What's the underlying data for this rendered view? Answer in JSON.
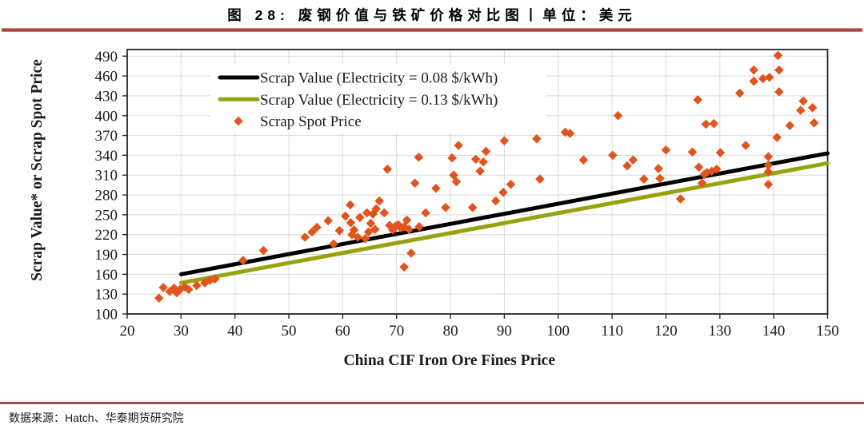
{
  "title": "图 28: 废钢价值与铁矿价格对比图丨单位：美元",
  "footer": {
    "source_label": "数据来源：Hatch、华泰期货研究院"
  },
  "colors": {
    "accent_rule": "#A94743",
    "accent_rule_light": "#D99694",
    "grid": "#D9D9D9",
    "frame": "#262626",
    "text": "#1A1A1A",
    "line_008": "#000000",
    "line_013": "#96A30D",
    "scatter": "#E2541E"
  },
  "chart_data": {
    "type": "scatter",
    "xlabel": "China CIF Iron Ore Fines Price",
    "ylabel": "Scrap Value* or Scrap Spot Price",
    "xlim": [
      20,
      150
    ],
    "ylim": [
      100,
      500
    ],
    "xticks": [
      20,
      30,
      40,
      50,
      60,
      70,
      80,
      90,
      100,
      110,
      120,
      130,
      140,
      150
    ],
    "yticks": [
      100,
      130,
      160,
      190,
      220,
      250,
      280,
      310,
      340,
      370,
      400,
      430,
      460,
      490
    ],
    "grid": true,
    "legend_position": "top-left-inside",
    "series": [
      {
        "name": "Scrap Value (Electricity = 0.08 $/kWh)",
        "type": "line",
        "color": "#000000",
        "points": [
          [
            30,
            160
          ],
          [
            150,
            343
          ]
        ]
      },
      {
        "name": "Scrap Value (Electricity = 0.13 $/kWh)",
        "type": "line",
        "color": "#96A30D",
        "points": [
          [
            30,
            147
          ],
          [
            150,
            328
          ]
        ]
      },
      {
        "name": "Scrap Spot Price",
        "type": "scatter",
        "color": "#E2541E",
        "marker": "diamond",
        "points": [
          [
            25.9,
            124
          ],
          [
            26.7,
            140
          ],
          [
            27.9,
            134
          ],
          [
            28.7,
            139
          ],
          [
            29.2,
            132
          ],
          [
            29.8,
            137
          ],
          [
            30.7,
            141
          ],
          [
            31.4,
            137
          ],
          [
            32.9,
            143
          ],
          [
            34.4,
            147
          ],
          [
            35.4,
            151
          ],
          [
            36.3,
            153
          ],
          [
            41.5,
            181
          ],
          [
            45.3,
            196
          ],
          [
            53,
            216
          ],
          [
            54.3,
            224
          ],
          [
            55.2,
            231
          ],
          [
            57.3,
            241
          ],
          [
            58.3,
            206
          ],
          [
            59.4,
            226
          ],
          [
            60.5,
            248
          ],
          [
            61.4,
            265
          ],
          [
            61.5,
            238
          ],
          [
            61.7,
            220
          ],
          [
            62.1,
            227
          ],
          [
            62.8,
            216
          ],
          [
            63.2,
            246
          ],
          [
            64.2,
            214
          ],
          [
            64.5,
            253
          ],
          [
            64.8,
            224
          ],
          [
            65.2,
            237
          ],
          [
            65.6,
            251
          ],
          [
            66,
            228
          ],
          [
            66.2,
            259
          ],
          [
            66.8,
            271
          ],
          [
            67.7,
            253
          ],
          [
            68.3,
            319
          ],
          [
            68.7,
            234
          ],
          [
            69.3,
            227
          ],
          [
            69.8,
            233
          ],
          [
            70.3,
            235
          ],
          [
            70.8,
            230
          ],
          [
            71.4,
            232
          ],
          [
            71.9,
            242
          ],
          [
            72.3,
            228
          ],
          [
            71.4,
            171
          ],
          [
            72.7,
            192
          ],
          [
            73.4,
            298
          ],
          [
            74.1,
            337
          ],
          [
            74.2,
            232
          ],
          [
            75.4,
            253
          ],
          [
            77.3,
            290
          ],
          [
            79.1,
            261
          ],
          [
            80.3,
            336
          ],
          [
            80.6,
            310
          ],
          [
            81.1,
            300
          ],
          [
            81.5,
            355
          ],
          [
            84.1,
            261
          ],
          [
            84.7,
            334
          ],
          [
            85.5,
            316
          ],
          [
            86.1,
            330
          ],
          [
            86.6,
            346
          ],
          [
            88.4,
            271
          ],
          [
            89.8,
            284
          ],
          [
            90,
            362
          ],
          [
            91.2,
            296
          ],
          [
            96,
            365
          ],
          [
            96.6,
            304
          ],
          [
            101.3,
            375
          ],
          [
            102.2,
            373
          ],
          [
            104.7,
            333
          ],
          [
            110.1,
            340
          ],
          [
            111.1,
            400
          ],
          [
            112.8,
            324
          ],
          [
            113.9,
            333
          ],
          [
            115.9,
            304
          ],
          [
            118.6,
            320
          ],
          [
            118.9,
            305
          ],
          [
            120,
            348
          ],
          [
            122.7,
            274
          ],
          [
            124.9,
            345
          ],
          [
            125.9,
            424
          ],
          [
            126.1,
            322
          ],
          [
            126.7,
            298
          ],
          [
            127.1,
            311
          ],
          [
            127.6,
            314
          ],
          [
            127.4,
            387
          ],
          [
            128.5,
            316
          ],
          [
            128.9,
            388
          ],
          [
            129.4,
            319
          ],
          [
            130.1,
            344
          ],
          [
            133.7,
            434
          ],
          [
            134.8,
            355
          ],
          [
            136.3,
            469
          ],
          [
            136.3,
            452
          ],
          [
            138,
            456
          ],
          [
            139.2,
            458
          ],
          [
            140.8,
            491
          ],
          [
            141,
            469
          ],
          [
            141,
            436
          ],
          [
            140.6,
            367
          ],
          [
            139,
            338
          ],
          [
            139,
            325
          ],
          [
            139,
            315
          ],
          [
            139,
            296
          ],
          [
            143,
            385
          ],
          [
            145,
            408
          ],
          [
            145.5,
            422
          ],
          [
            147.2,
            412
          ],
          [
            147.5,
            389
          ]
        ]
      }
    ]
  }
}
